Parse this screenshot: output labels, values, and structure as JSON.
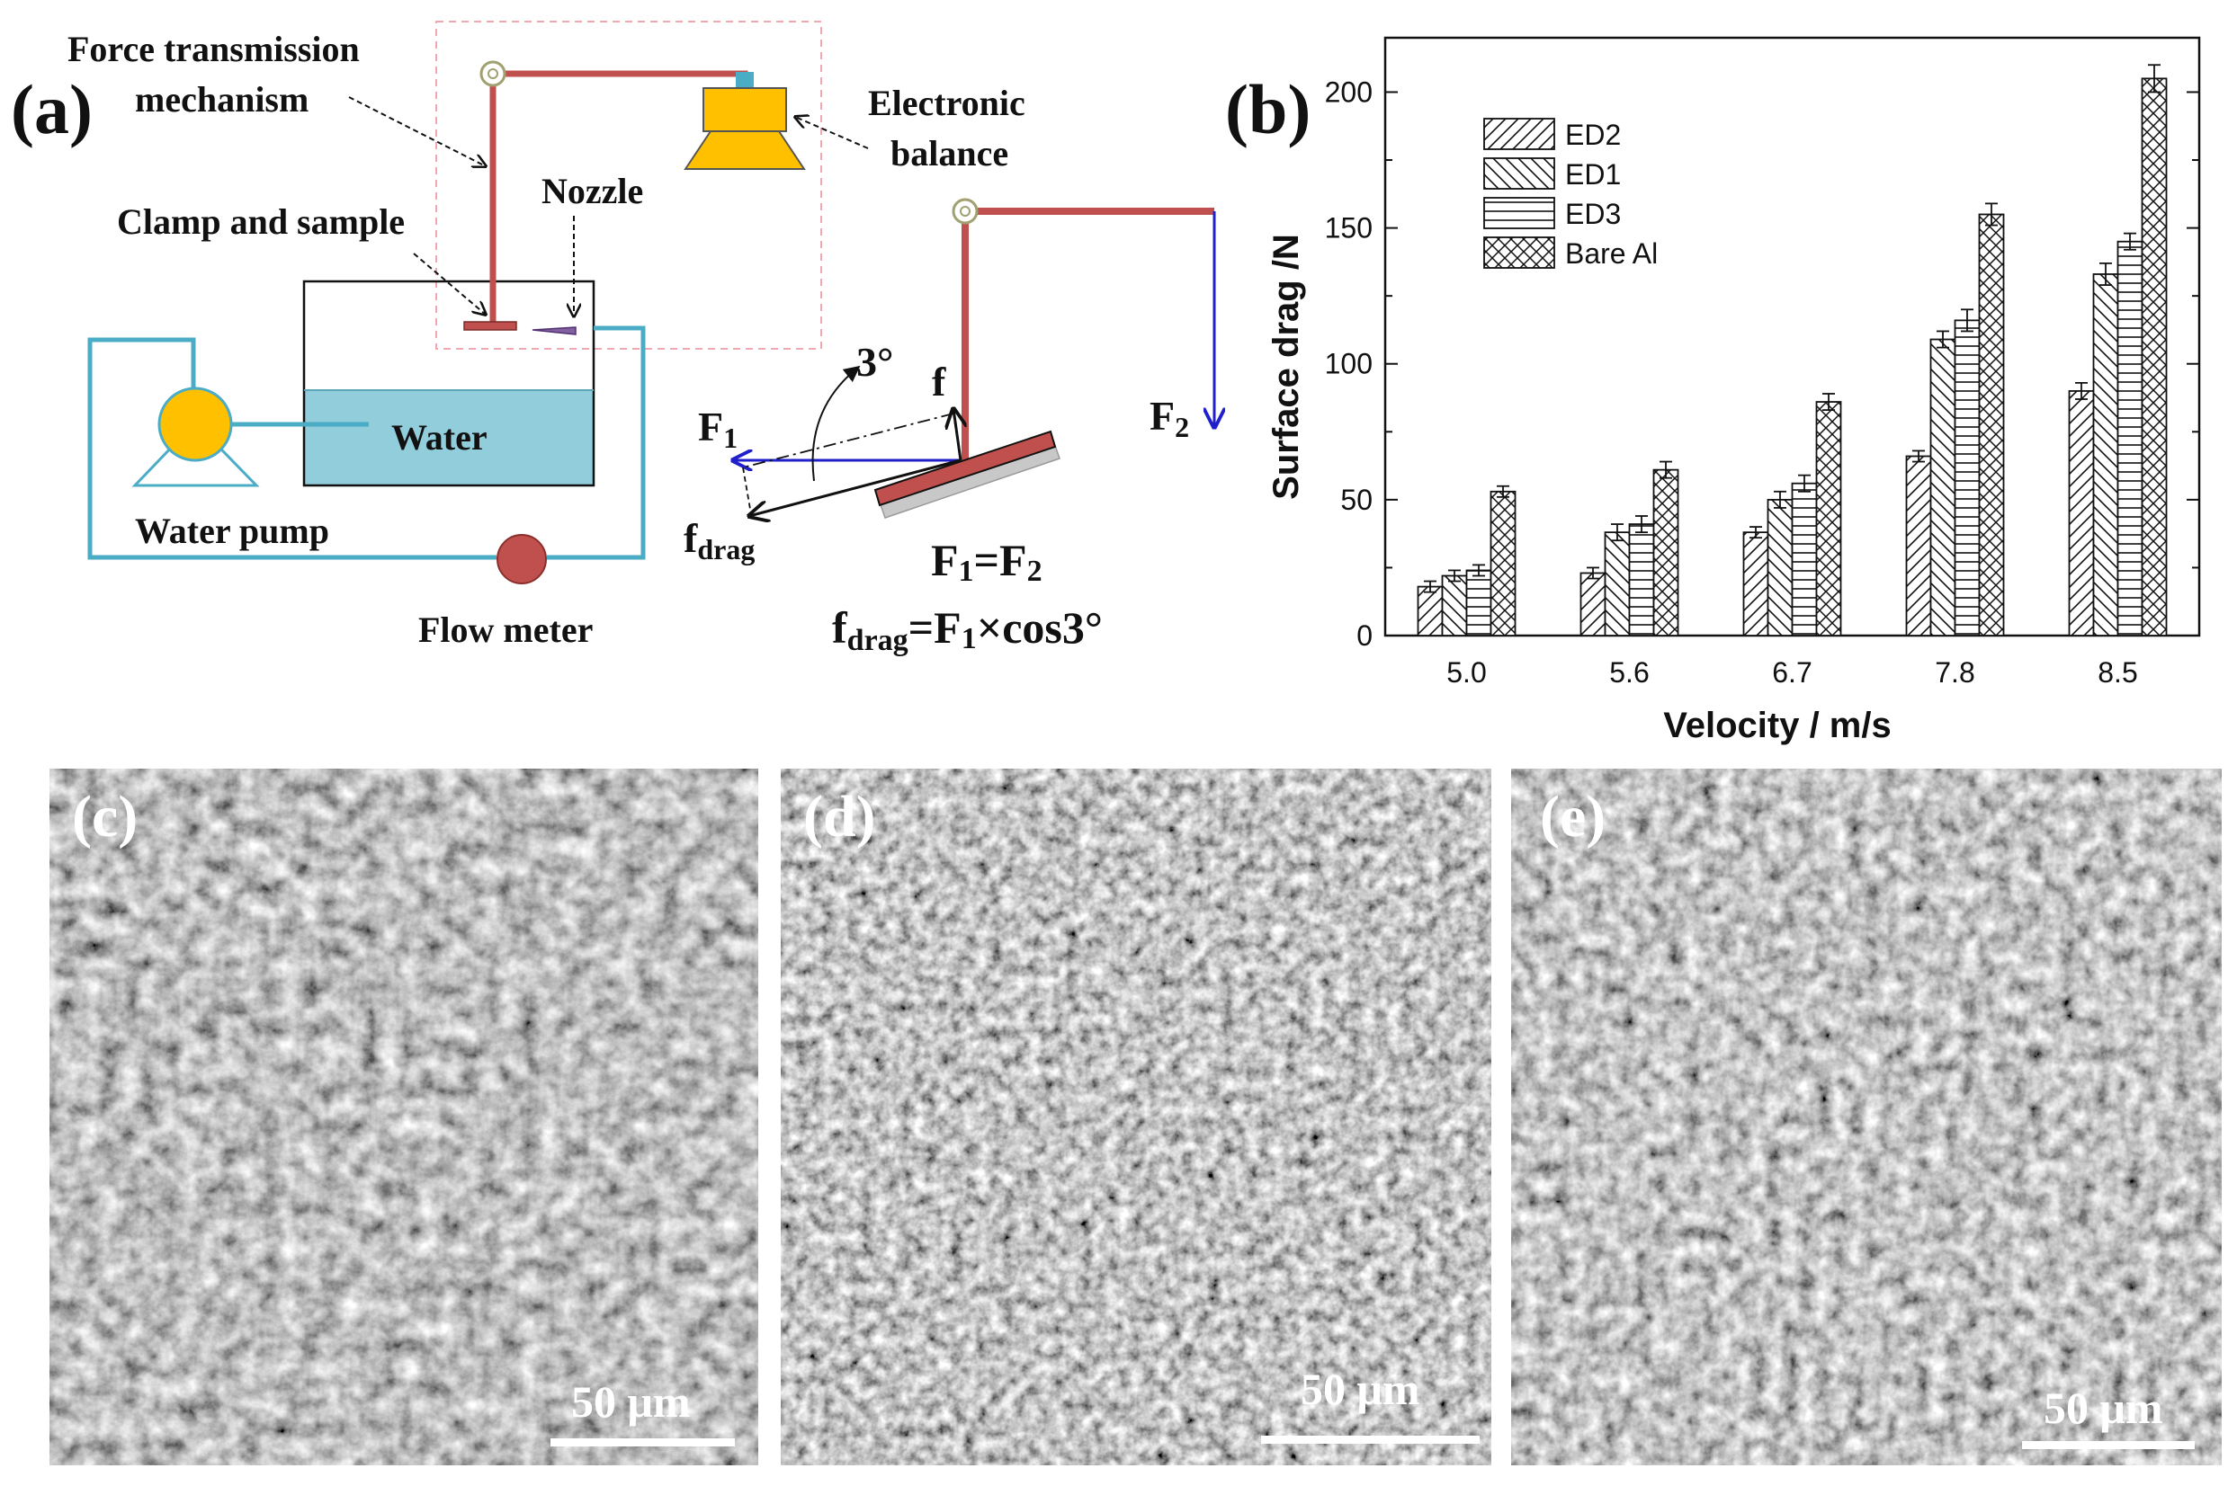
{
  "panel_a": {
    "label": "(a)",
    "force_mech_line1": "Force transmission",
    "force_mech_line2": "mechanism",
    "balance_line1": "Electronic",
    "balance_line2": "balance",
    "nozzle": "Nozzle",
    "clamp": "Clamp and  sample",
    "water": "Water",
    "pump": "Water pump",
    "flow_meter": "Flow meter",
    "f1": "F",
    "f1_sub": "1",
    "f2": "F",
    "f2_sub": "2",
    "f": "f",
    "angle": "3°",
    "fdrag": "f",
    "fdrag_sub": "drag",
    "eq1_a": "F",
    "eq1_b": "1",
    "eq1_c": "=F",
    "eq1_d": "2",
    "eq2_a": "f",
    "eq2_b": "drag",
    "eq2_c": "=F",
    "eq2_d": "1",
    "eq2_e": "×cos3°",
    "colors": {
      "frame": "#c0504d",
      "pipe": "#4bacc6",
      "water": "#92cddc",
      "balance": "#ffc000",
      "force_arrow": "#1f1fcc"
    }
  },
  "chart_data": {
    "type": "bar",
    "panel_label": "(b)",
    "categories": [
      "5.0",
      "5.6",
      "6.7",
      "7.8",
      "8.5"
    ],
    "series": [
      {
        "name": "ED2",
        "pattern": "diag-right",
        "values": [
          18,
          23,
          38,
          66,
          90
        ],
        "errors": [
          2,
          2,
          2,
          2,
          3
        ]
      },
      {
        "name": "ED1",
        "pattern": "diag-left",
        "values": [
          22,
          38,
          50,
          109,
          133
        ],
        "errors": [
          2,
          3,
          3,
          3,
          4
        ]
      },
      {
        "name": "ED3",
        "pattern": "horizontal",
        "values": [
          24,
          41,
          56,
          116,
          145
        ],
        "errors": [
          2,
          3,
          3,
          4,
          3
        ]
      },
      {
        "name": "Bare Al",
        "pattern": "cross",
        "values": [
          53,
          61,
          86,
          155,
          205
        ],
        "errors": [
          2,
          3,
          3,
          4,
          5
        ]
      }
    ],
    "xlabel": "Velocity / m/s",
    "ylabel": "Surface drag /N",
    "ylim": [
      0,
      220
    ],
    "yticks": [
      "0",
      "50",
      "100",
      "150",
      "200"
    ],
    "legend_position": "top-left"
  },
  "micrographs": [
    {
      "label": "(c)",
      "scale": "50 μm"
    },
    {
      "label": "(d)",
      "scale": "50 μm"
    },
    {
      "label": "(e)",
      "scale": "50 μm"
    }
  ]
}
